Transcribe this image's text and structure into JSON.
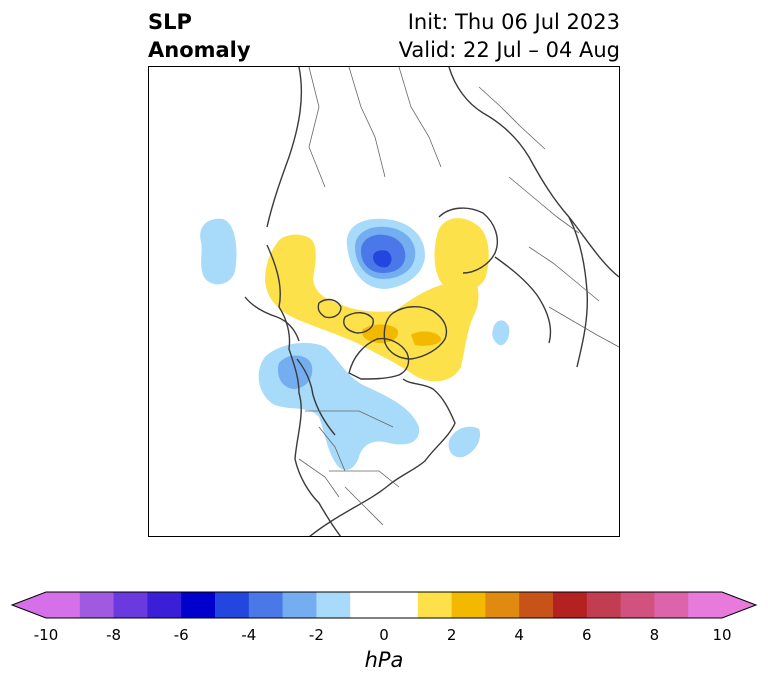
{
  "title": {
    "left_line1": "SLP",
    "left_line2": "Anomaly",
    "right_line1": "Init: Thu 06 Jul 2023",
    "right_line2": "Valid: 22 Jul – 04 Aug"
  },
  "colorbar": {
    "ticks": [
      "-10",
      "-8",
      "-6",
      "-4",
      "-2",
      "0",
      "2",
      "4",
      "6",
      "8",
      "10"
    ],
    "unit": "hPa",
    "colors": [
      "#d670e8",
      "#a05ae0",
      "#6a3ade",
      "#3a1fd6",
      "#0000cc",
      "#2346de",
      "#4a78e8",
      "#74adf0",
      "#a8dafa",
      "#ffffff",
      "#ffffff",
      "#fde14a",
      "#f3b800",
      "#e08a0f",
      "#c85318",
      "#b42121",
      "#c23c52",
      "#d1527e",
      "#dc64aa",
      "#e77adb"
    ]
  },
  "map": {
    "colors": {
      "light_blue": "#a8dafa",
      "mid_blue": "#74adf0",
      "blue": "#4a78e8",
      "dark_blue": "#2346de",
      "yellow": "#fde14a",
      "orange": "#f3b800",
      "coast": "#3a3a3a",
      "border": "#666666"
    }
  }
}
